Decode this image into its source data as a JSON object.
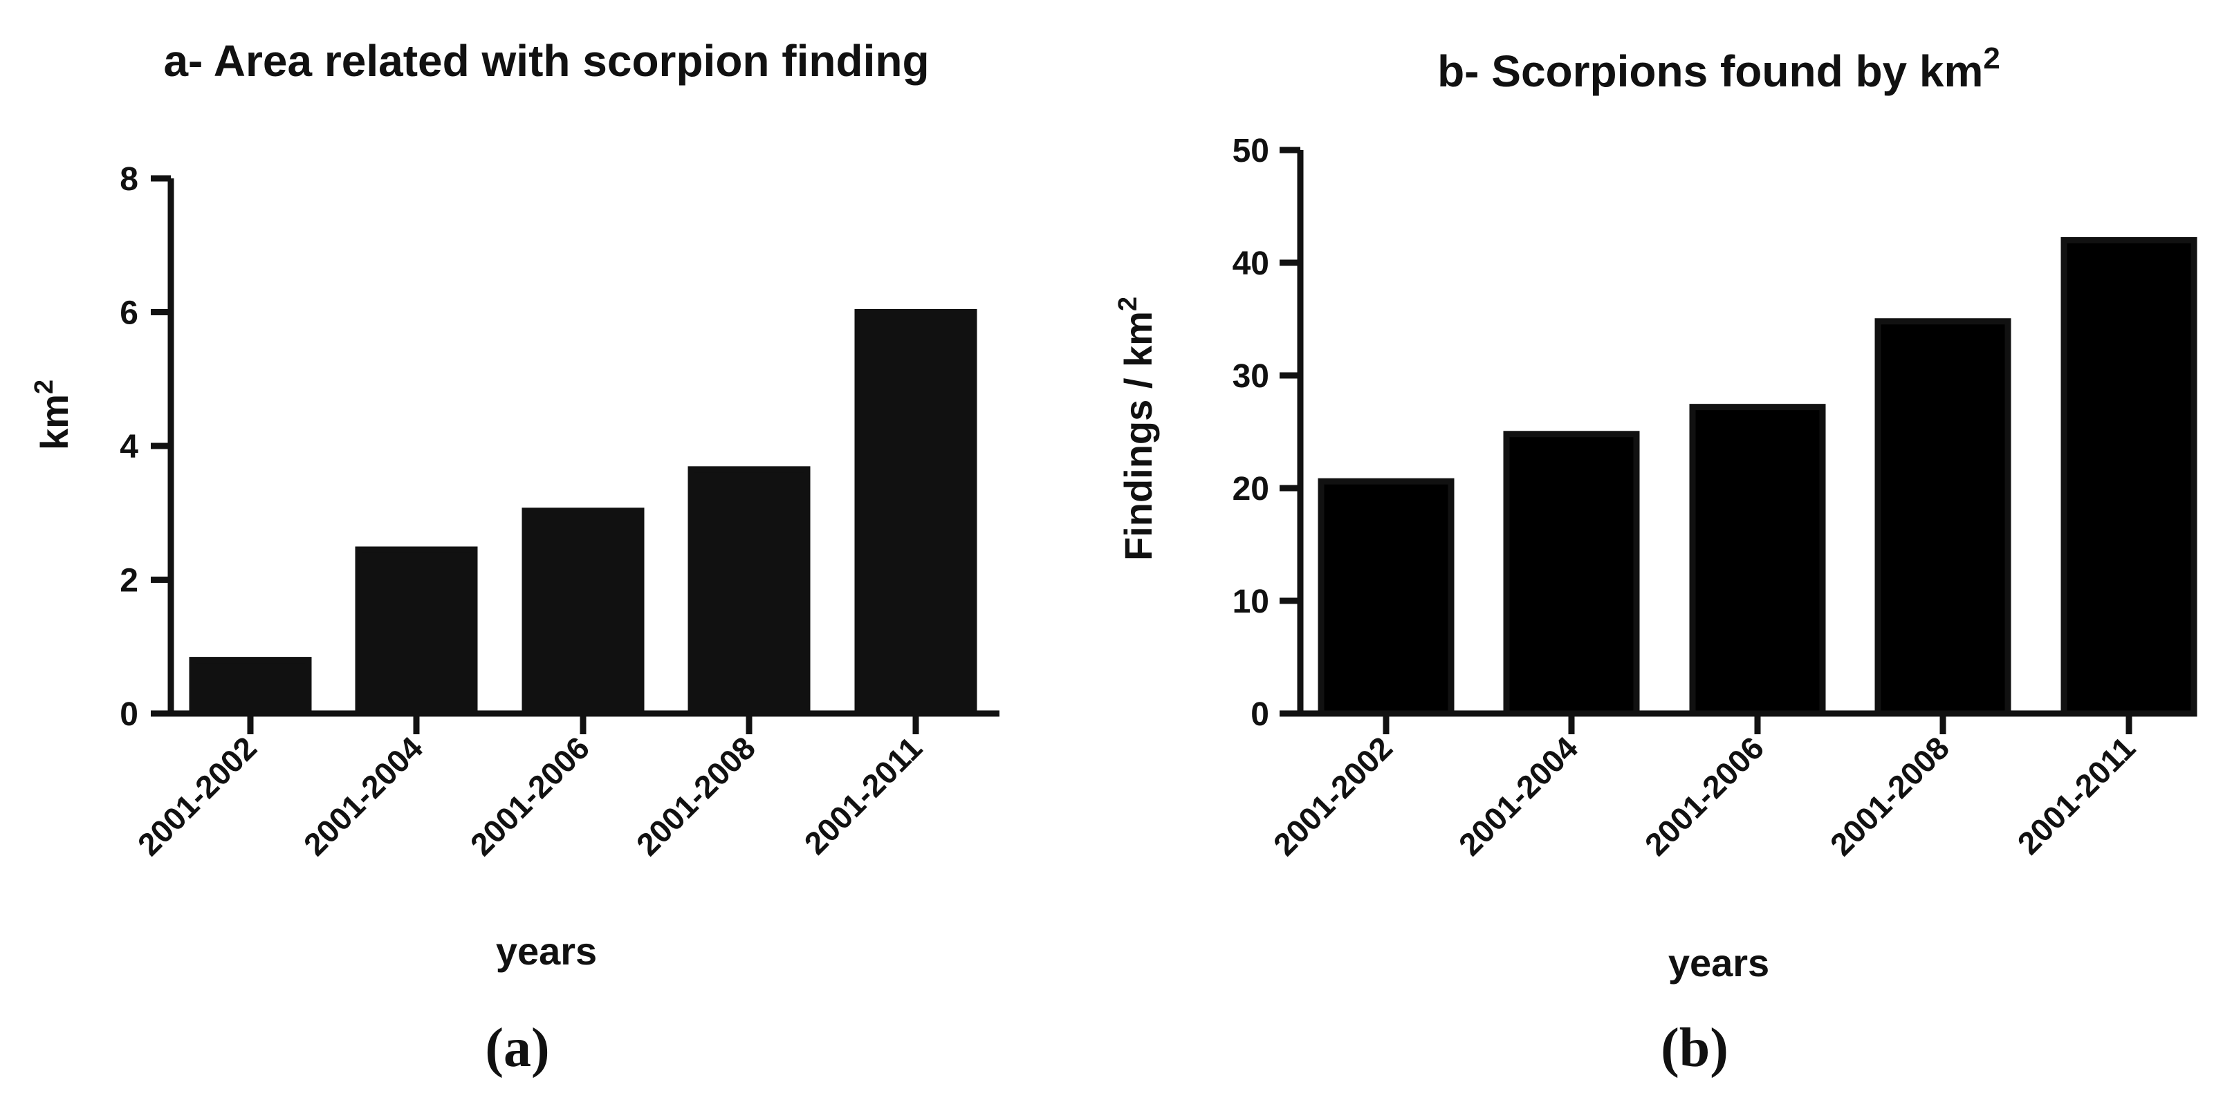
{
  "chart_data": [
    {
      "type": "bar",
      "title": "a- Area related with scorpion finding",
      "title_sup": "",
      "xlabel": "years",
      "ylabel": "km",
      "ylabel_sup": "2",
      "categories": [
        "2001-2002",
        "2001-2004",
        "2001-2006",
        "2001-2008",
        "2001-2011"
      ],
      "values": [
        0.8,
        2.45,
        3.03,
        3.65,
        6.0
      ],
      "ylim": [
        0,
        8
      ],
      "yticks": [
        0,
        2,
        4,
        6,
        8
      ],
      "bar_color": "#111111",
      "grid": false,
      "panel_label": "(a)"
    },
    {
      "type": "bar",
      "title": "b- Scorpions found by km",
      "title_sup": "2",
      "xlabel": "years",
      "ylabel": "Findings / km",
      "ylabel_sup": "2",
      "categories": [
        "2001-2002",
        "2001-2004",
        "2001-2006",
        "2001-2008",
        "2001-2011"
      ],
      "values": [
        20.6,
        24.8,
        27.2,
        34.8,
        42.0
      ],
      "ylim": [
        0,
        50
      ],
      "yticks": [
        0,
        10,
        20,
        30,
        40,
        50
      ],
      "bar_color": "#000000",
      "grid": false,
      "panel_label": "(b)"
    }
  ]
}
